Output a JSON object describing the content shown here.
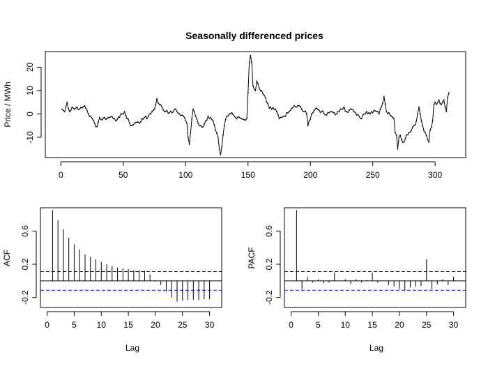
{
  "chart_data": [
    {
      "type": "line",
      "title": "Seasonally differenced prices",
      "xlabel": "",
      "ylabel": "Price / MWh",
      "xlim": [
        0,
        312
      ],
      "ylim": [
        -17,
        25
      ],
      "x_ticks": [
        0,
        50,
        100,
        150,
        200,
        250,
        300
      ],
      "y_ticks": [
        -10,
        0,
        10,
        20
      ],
      "grid": false,
      "series_color": "#000000",
      "keypoints": [
        [
          1,
          2
        ],
        [
          3,
          1
        ],
        [
          5,
          5
        ],
        [
          7,
          1
        ],
        [
          9,
          3
        ],
        [
          11,
          2
        ],
        [
          13,
          3
        ],
        [
          15,
          2
        ],
        [
          17,
          2.5
        ],
        [
          19,
          3.5
        ],
        [
          21,
          1.5
        ],
        [
          23,
          -1
        ],
        [
          25,
          -2
        ],
        [
          27,
          -4
        ],
        [
          29,
          -5.5
        ],
        [
          31,
          -1.5
        ],
        [
          33,
          -2.5
        ],
        [
          35,
          -1.5
        ],
        [
          37,
          -2
        ],
        [
          39,
          -1.5
        ],
        [
          41,
          -1
        ],
        [
          43,
          -2
        ],
        [
          45,
          -2.5
        ],
        [
          47,
          -1.5
        ],
        [
          49,
          0
        ],
        [
          51,
          1
        ],
        [
          53,
          -2
        ],
        [
          55,
          -4
        ],
        [
          57,
          -5
        ],
        [
          59,
          -4
        ],
        [
          61,
          -3.5
        ],
        [
          63,
          -4
        ],
        [
          65,
          -2
        ],
        [
          67,
          -1.5
        ],
        [
          69,
          -2
        ],
        [
          71,
          0
        ],
        [
          73,
          1
        ],
        [
          75,
          2
        ],
        [
          77,
          6.5
        ],
        [
          79,
          4
        ],
        [
          81,
          3
        ],
        [
          83,
          1
        ],
        [
          85,
          1.5
        ],
        [
          87,
          0.5
        ],
        [
          89,
          0.5
        ],
        [
          91,
          2
        ],
        [
          93,
          1
        ],
        [
          95,
          0
        ],
        [
          97,
          -0.5
        ],
        [
          99,
          -1.5
        ],
        [
          101,
          -4
        ],
        [
          102,
          -10
        ],
        [
          103,
          -13
        ],
        [
          104,
          -8
        ],
        [
          105,
          -2
        ],
        [
          106,
          2
        ],
        [
          108,
          -1
        ],
        [
          110,
          -4
        ],
        [
          112,
          -5
        ],
        [
          114,
          -5.5
        ],
        [
          116,
          -3
        ],
        [
          118,
          -1
        ],
        [
          120,
          -1.5
        ],
        [
          122,
          -3
        ],
        [
          124,
          -7
        ],
        [
          126,
          -10
        ],
        [
          127,
          -15
        ],
        [
          128,
          -17.5
        ],
        [
          129,
          -14
        ],
        [
          130,
          -9
        ],
        [
          131,
          -5
        ],
        [
          133,
          -1
        ],
        [
          135,
          0
        ],
        [
          137,
          0.5
        ],
        [
          139,
          -1
        ],
        [
          141,
          -2
        ],
        [
          143,
          -1.5
        ],
        [
          145,
          -2
        ],
        [
          147,
          -2.5
        ],
        [
          149,
          -2
        ],
        [
          150,
          9
        ],
        [
          151,
          22
        ],
        [
          152,
          25
        ],
        [
          153,
          22
        ],
        [
          154,
          12
        ],
        [
          156,
          10
        ],
        [
          157,
          14
        ],
        [
          159,
          11
        ],
        [
          161,
          10
        ],
        [
          163,
          8
        ],
        [
          165,
          5
        ],
        [
          167,
          2.5
        ],
        [
          169,
          2
        ],
        [
          171,
          2
        ],
        [
          173,
          1
        ],
        [
          175,
          -2
        ],
        [
          177,
          -1.5
        ],
        [
          179,
          -1
        ],
        [
          181,
          0.5
        ],
        [
          183,
          1
        ],
        [
          185,
          2.5
        ],
        [
          187,
          3.5
        ],
        [
          189,
          3
        ],
        [
          191,
          3.5
        ],
        [
          193,
          2
        ],
        [
          195,
          1
        ],
        [
          197,
          0
        ],
        [
          198,
          -5
        ],
        [
          199,
          -3
        ],
        [
          201,
          0
        ],
        [
          203,
          1.5
        ],
        [
          205,
          2.5
        ],
        [
          207,
          1.5
        ],
        [
          209,
          1
        ],
        [
          211,
          0
        ],
        [
          213,
          -0.5
        ],
        [
          215,
          0.5
        ],
        [
          217,
          1
        ],
        [
          219,
          0.5
        ],
        [
          221,
          0
        ],
        [
          223,
          1
        ],
        [
          225,
          2
        ],
        [
          227,
          3
        ],
        [
          229,
          1
        ],
        [
          231,
          1.5
        ],
        [
          233,
          2
        ],
        [
          235,
          1
        ],
        [
          237,
          -0.5
        ],
        [
          239,
          -1
        ],
        [
          241,
          -2
        ],
        [
          243,
          0
        ],
        [
          245,
          1
        ],
        [
          247,
          0.5
        ],
        [
          249,
          1
        ],
        [
          251,
          1.5
        ],
        [
          253,
          1
        ],
        [
          255,
          0
        ],
        [
          257,
          3
        ],
        [
          259,
          7.5
        ],
        [
          261,
          1
        ],
        [
          263,
          0.5
        ],
        [
          265,
          -1
        ],
        [
          267,
          -2
        ],
        [
          268,
          -8
        ],
        [
          269,
          -9
        ],
        [
          270,
          -15
        ],
        [
          271,
          -10
        ],
        [
          272,
          -9
        ],
        [
          273,
          -11
        ],
        [
          275,
          -12
        ],
        [
          277,
          -9
        ],
        [
          279,
          -8
        ],
        [
          281,
          -7
        ],
        [
          283,
          -5
        ],
        [
          285,
          -3
        ],
        [
          286,
          0
        ],
        [
          287,
          3
        ],
        [
          288,
          0
        ],
        [
          290,
          -5
        ],
        [
          292,
          -8
        ],
        [
          294,
          -11
        ],
        [
          295,
          -12
        ],
        [
          296,
          -7
        ],
        [
          298,
          -3
        ],
        [
          299,
          4
        ],
        [
          300,
          5
        ],
        [
          301,
          4
        ],
        [
          303,
          6
        ],
        [
          305,
          4
        ],
        [
          306,
          5
        ],
        [
          307,
          6
        ],
        [
          308,
          3
        ],
        [
          309,
          1
        ],
        [
          310,
          7
        ],
        [
          311,
          9
        ]
      ]
    },
    {
      "type": "bar",
      "title": "",
      "xlabel": "Lag",
      "ylabel": "ACF",
      "xlim": [
        0,
        31
      ],
      "ylim": [
        -0.32,
        0.88
      ],
      "x_ticks": [
        0,
        5,
        10,
        15,
        20,
        25,
        30
      ],
      "y_ticks": [
        -0.2,
        0.2,
        0.6
      ],
      "confidence_band": 0.112,
      "band_color": "#0000FF",
      "lags": [
        1,
        2,
        3,
        4,
        5,
        6,
        7,
        8,
        9,
        10,
        11,
        12,
        13,
        14,
        15,
        16,
        17,
        18,
        19,
        20,
        21,
        22,
        23,
        24,
        25,
        26,
        27,
        28,
        29,
        30
      ],
      "values": [
        0.85,
        0.73,
        0.62,
        0.52,
        0.44,
        0.38,
        0.32,
        0.29,
        0.26,
        0.23,
        0.2,
        0.18,
        0.16,
        0.15,
        0.14,
        0.13,
        0.13,
        0.12,
        0.08,
        0.01,
        -0.05,
        -0.13,
        -0.2,
        -0.25,
        -0.24,
        -0.23,
        -0.23,
        -0.23,
        -0.22,
        -0.22
      ]
    },
    {
      "type": "bar",
      "title": "",
      "xlabel": "Lag",
      "ylabel": "PACF",
      "xlim": [
        0,
        31
      ],
      "ylim": [
        -0.32,
        0.88
      ],
      "x_ticks": [
        0,
        5,
        10,
        15,
        20,
        25,
        30
      ],
      "y_ticks": [
        -0.2,
        0.2,
        0.6
      ],
      "confidence_band": 0.112,
      "band_color": "#0000FF",
      "lags": [
        1,
        2,
        3,
        4,
        5,
        6,
        7,
        8,
        9,
        10,
        11,
        12,
        13,
        14,
        15,
        16,
        17,
        18,
        19,
        20,
        21,
        22,
        23,
        24,
        25,
        26,
        27,
        28,
        29,
        30
      ],
      "values": [
        0.85,
        -0.1,
        0.05,
        -0.02,
        0.02,
        -0.03,
        -0.02,
        0.1,
        0.0,
        0.02,
        -0.04,
        0.02,
        -0.02,
        0.01,
        0.1,
        -0.02,
        0.0,
        -0.05,
        -0.07,
        -0.1,
        -0.12,
        -0.08,
        -0.07,
        -0.06,
        0.26,
        -0.1,
        -0.04,
        0.02,
        -0.05,
        0.05
      ]
    }
  ]
}
